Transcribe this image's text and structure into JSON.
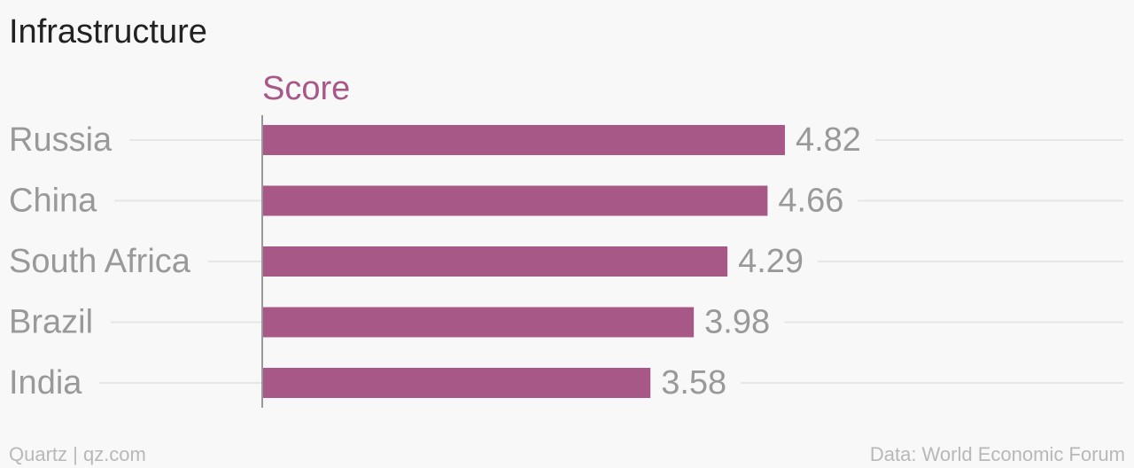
{
  "header": {
    "title": "Infrastructure"
  },
  "footer": {
    "source_left": "Quartz | qz.com",
    "source_right": "Data: World Economic Forum"
  },
  "colors": {
    "bar": "#a85887",
    "series_label": "#a85887",
    "label": "#999999",
    "gridline": "#e6e6e6",
    "axis": "#999999"
  },
  "chart_data": {
    "type": "bar",
    "orientation": "horizontal",
    "title": "Infrastructure",
    "categories": [
      "Russia",
      "China",
      "South Africa",
      "Brazil",
      "India"
    ],
    "series": [
      {
        "name": "Score",
        "values": [
          4.82,
          4.66,
          4.29,
          3.98,
          3.58
        ]
      }
    ],
    "value_labels": [
      "4.82",
      "4.66",
      "4.29",
      "3.98",
      "3.58"
    ],
    "xlim": [
      0,
      7.6
    ],
    "grid": true,
    "legend": "none"
  }
}
